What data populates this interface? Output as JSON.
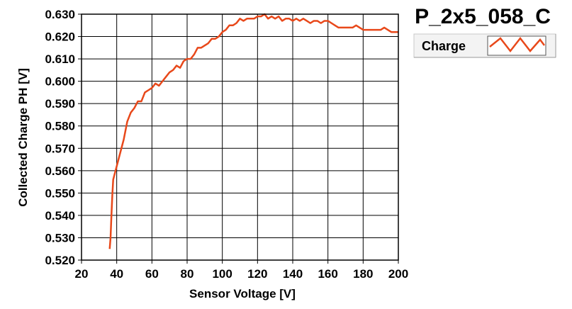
{
  "chart_data": {
    "type": "line",
    "title": "P_2x5_058_C",
    "xlabel": "Sensor Voltage [V]",
    "ylabel": "Collected Charge PH [V]",
    "xlim": [
      20,
      200
    ],
    "ylim": [
      0.52,
      0.63
    ],
    "x_ticks": [
      "20",
      "40",
      "60",
      "80",
      "100",
      "120",
      "140",
      "160",
      "180",
      "200"
    ],
    "y_ticks": [
      "0.520",
      "0.530",
      "0.540",
      "0.550",
      "0.560",
      "0.570",
      "0.580",
      "0.590",
      "0.600",
      "0.610",
      "0.620",
      "0.630"
    ],
    "grid": true,
    "legend_position": "top-right",
    "series": [
      {
        "name": "Charge",
        "color": "#e8481a",
        "x": [
          36,
          36.5,
          37,
          37.5,
          38,
          39,
          40,
          41,
          42,
          43,
          44,
          45,
          46,
          48,
          50,
          52,
          54,
          56,
          58,
          60,
          62,
          64,
          66,
          68,
          70,
          72,
          74,
          76,
          78,
          80,
          82,
          84,
          86,
          88,
          90,
          92,
          94,
          96,
          98,
          100,
          102,
          104,
          106,
          108,
          110,
          112,
          114,
          116,
          118,
          120,
          122,
          124,
          126,
          128,
          130,
          132,
          134,
          136,
          138,
          140,
          142,
          144,
          146,
          148,
          150,
          152,
          154,
          156,
          158,
          160,
          162,
          164,
          166,
          168,
          170,
          172,
          174,
          176,
          178,
          180,
          182,
          184,
          186,
          188,
          190,
          192,
          194,
          196,
          198,
          200
        ],
        "y": [
          0.525,
          0.53,
          0.54,
          0.549,
          0.556,
          0.559,
          0.562,
          0.565,
          0.568,
          0.571,
          0.574,
          0.578,
          0.582,
          0.586,
          0.588,
          0.591,
          0.591,
          0.595,
          0.596,
          0.597,
          0.599,
          0.598,
          0.6,
          0.602,
          0.604,
          0.605,
          0.607,
          0.606,
          0.609,
          0.61,
          0.61,
          0.612,
          0.615,
          0.615,
          0.616,
          0.617,
          0.619,
          0.619,
          0.62,
          0.622,
          0.623,
          0.625,
          0.625,
          0.626,
          0.628,
          0.627,
          0.628,
          0.628,
          0.628,
          0.629,
          0.629,
          0.63,
          0.628,
          0.629,
          0.628,
          0.629,
          0.627,
          0.628,
          0.628,
          0.627,
          0.628,
          0.627,
          0.628,
          0.627,
          0.626,
          0.627,
          0.627,
          0.626,
          0.627,
          0.627,
          0.626,
          0.625,
          0.624,
          0.624,
          0.624,
          0.624,
          0.624,
          0.625,
          0.624,
          0.623,
          0.623,
          0.623,
          0.623,
          0.623,
          0.623,
          0.624,
          0.623,
          0.622,
          0.622,
          0.622
        ]
      }
    ]
  }
}
